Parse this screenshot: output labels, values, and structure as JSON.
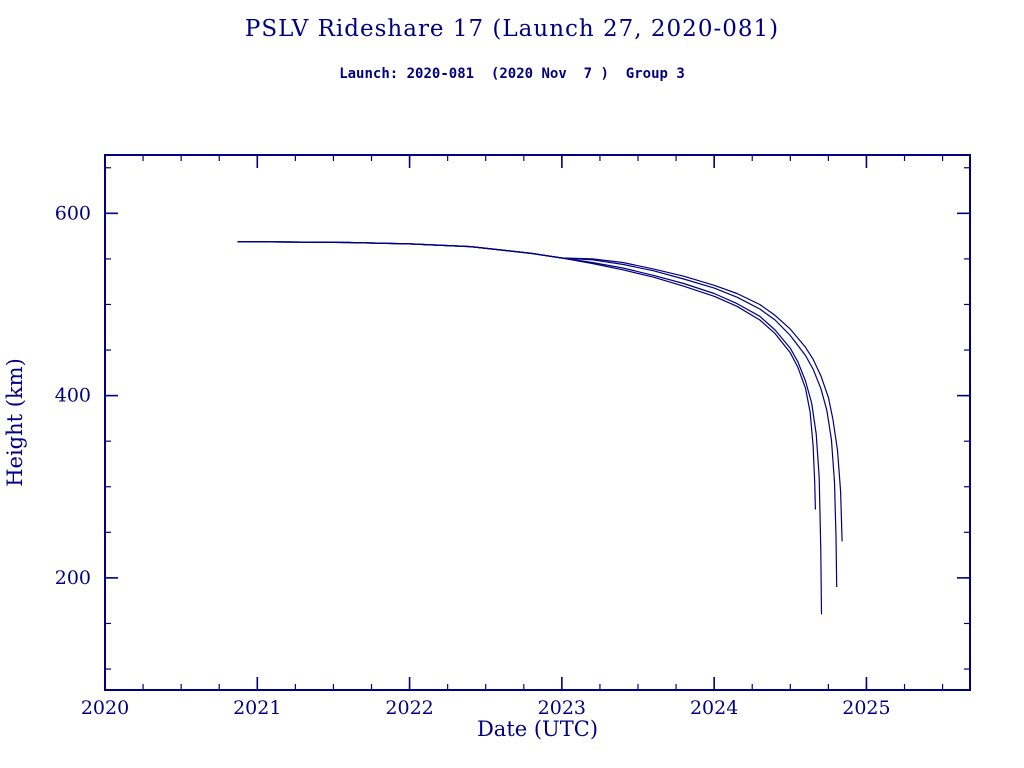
{
  "chart_data": {
    "type": "line",
    "title": "PSLV Rideshare 17 (Launch 27, 2020-081)",
    "subtitle": "Launch: 2020-081  (2020 Nov  7 )  Group 3",
    "xlabel": "Date (UTC)",
    "ylabel": "Height (km)",
    "xlim": [
      2020,
      2025.68
    ],
    "ylim": [
      77,
      664
    ],
    "xticks": [
      2020,
      2021,
      2022,
      2023,
      2024,
      2025
    ],
    "yticks": [
      200,
      400,
      600
    ],
    "x_minor_step": 0.25,
    "y_minor_step": 50,
    "grid": false,
    "legend": "none",
    "line_color": "#000080",
    "series": [
      {
        "name": "object-1",
        "x": [
          2020.87,
          2021.2,
          2021.6,
          2022.0,
          2022.4,
          2022.8,
          2023.0,
          2023.2,
          2023.4,
          2023.6,
          2023.8,
          2024.0,
          2024.15,
          2024.3,
          2024.4,
          2024.5,
          2024.55,
          2024.6,
          2024.63,
          2024.65,
          2024.66,
          2024.665
        ],
        "y": [
          569,
          568.5,
          568,
          566.5,
          563.5,
          556,
          551,
          545,
          538,
          530,
          520,
          509,
          498,
          483,
          468,
          447,
          431,
          408,
          382,
          345,
          305,
          275
        ]
      },
      {
        "name": "object-2",
        "x": [
          2020.87,
          2021.2,
          2021.6,
          2022.0,
          2022.4,
          2022.8,
          2023.0,
          2023.2,
          2023.4,
          2023.6,
          2023.8,
          2024.0,
          2024.15,
          2024.3,
          2024.4,
          2024.5,
          2024.55,
          2024.6,
          2024.64,
          2024.67,
          2024.69,
          2024.7,
          2024.705
        ],
        "y": [
          569,
          568.5,
          568,
          566.5,
          563.5,
          556,
          551,
          546,
          540,
          532,
          523,
          512,
          501,
          487,
          472,
          452,
          437,
          416,
          392,
          358,
          310,
          230,
          160
        ]
      },
      {
        "name": "object-3",
        "x": [
          2020.87,
          2021.2,
          2021.6,
          2022.0,
          2022.4,
          2022.8,
          2023.0,
          2023.2,
          2023.4,
          2023.6,
          2023.8,
          2024.0,
          2024.15,
          2024.3,
          2024.4,
          2024.5,
          2024.6,
          2024.65,
          2024.7,
          2024.74,
          2024.77,
          2024.79,
          2024.8,
          2024.805
        ],
        "y": [
          569,
          568.5,
          568,
          566.5,
          563.5,
          556,
          551,
          549,
          544,
          537,
          528,
          518,
          508,
          495,
          483,
          466,
          444,
          429,
          408,
          384,
          352,
          305,
          245,
          190
        ]
      },
      {
        "name": "object-4",
        "x": [
          2020.87,
          2021.2,
          2021.6,
          2022.0,
          2022.4,
          2022.8,
          2023.0,
          2023.2,
          2023.4,
          2023.6,
          2023.8,
          2024.0,
          2024.15,
          2024.3,
          2024.4,
          2024.5,
          2024.6,
          2024.65,
          2024.7,
          2024.75,
          2024.78,
          2024.81,
          2024.83,
          2024.84
        ],
        "y": [
          569,
          568.5,
          568,
          566.5,
          563.5,
          556,
          551,
          550,
          546,
          539,
          531,
          521,
          512,
          500,
          488,
          473,
          453,
          440,
          422,
          398,
          374,
          340,
          295,
          240
        ]
      }
    ]
  }
}
